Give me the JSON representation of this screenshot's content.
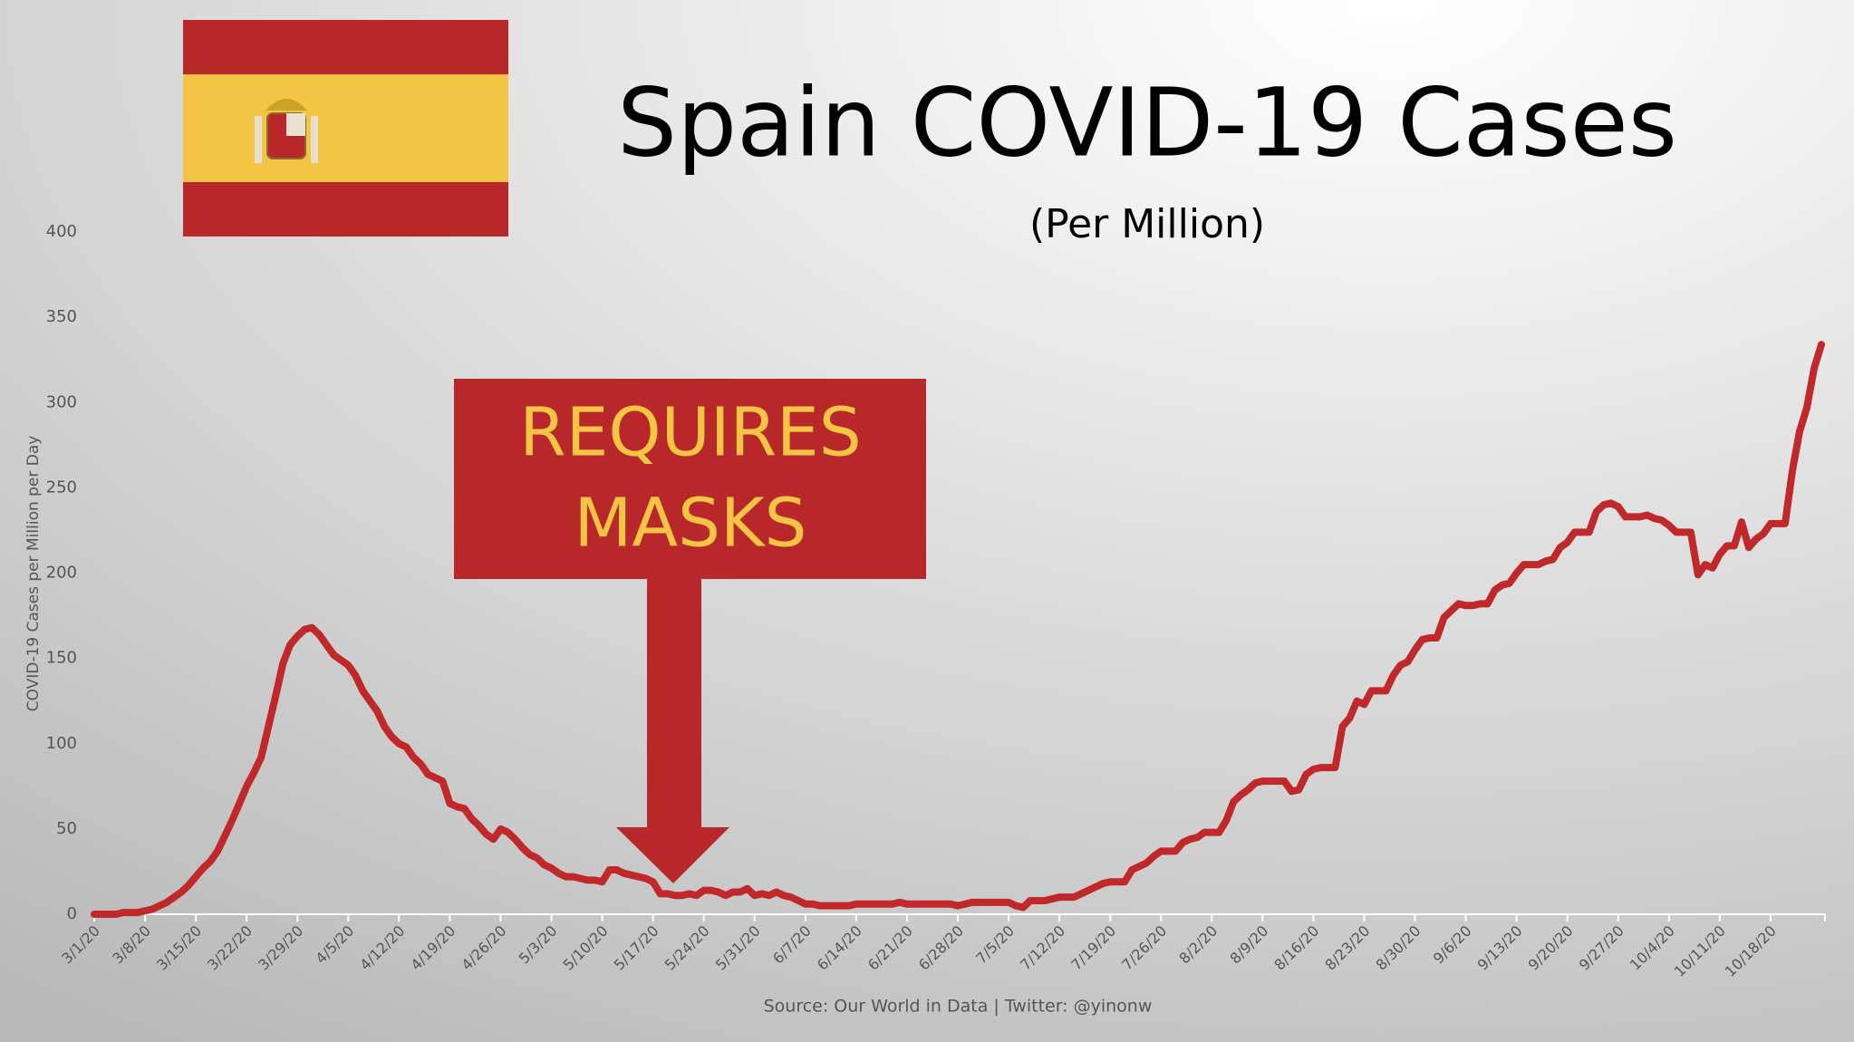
{
  "chart_data": {
    "type": "line",
    "title": "Spain COVID-19 Cases",
    "subtitle": "(Per Million)",
    "y_axis_label": "COVID-19 Cases per Million per Day",
    "source": "Source: Our World in Data | Twitter: @yinonw",
    "annotation": [
      "REQUIRES",
      "MASKS"
    ],
    "ylim": [
      0,
      400
    ],
    "yticks": [
      0,
      50,
      100,
      150,
      200,
      250,
      300,
      350,
      400
    ],
    "categories": [
      "3/1/20",
      null,
      null,
      null,
      null,
      null,
      null,
      "3/8/20",
      null,
      null,
      null,
      null,
      null,
      null,
      "3/15/20",
      null,
      null,
      null,
      null,
      null,
      null,
      "3/22/20",
      null,
      null,
      null,
      null,
      null,
      null,
      "3/29/20",
      null,
      null,
      null,
      null,
      null,
      null,
      "4/5/20",
      null,
      null,
      null,
      null,
      null,
      null,
      "4/12/20",
      null,
      null,
      null,
      null,
      null,
      null,
      "4/19/20",
      null,
      null,
      null,
      null,
      null,
      null,
      "4/26/20",
      null,
      null,
      null,
      null,
      null,
      null,
      "5/3/20",
      null,
      null,
      null,
      null,
      null,
      null,
      "5/10/20",
      null,
      null,
      null,
      null,
      null,
      null,
      "5/17/20",
      null,
      null,
      null,
      null,
      null,
      null,
      "5/24/20",
      null,
      null,
      null,
      null,
      null,
      null,
      "5/31/20",
      null,
      null,
      null,
      null,
      null,
      null,
      "6/7/20",
      null,
      null,
      null,
      null,
      null,
      null,
      "6/14/20",
      null,
      null,
      null,
      null,
      null,
      null,
      "6/21/20",
      null,
      null,
      null,
      null,
      null,
      null,
      "6/28/20",
      null,
      null,
      null,
      null,
      null,
      null,
      "7/5/20",
      null,
      null,
      null,
      null,
      null,
      null,
      "7/12/20",
      null,
      null,
      null,
      null,
      null,
      null,
      "7/19/20",
      null,
      null,
      null,
      null,
      null,
      null,
      "7/26/20",
      null,
      null,
      null,
      null,
      null,
      null,
      "8/2/20",
      null,
      null,
      null,
      null,
      null,
      null,
      "8/9/20",
      null,
      null,
      null,
      null,
      null,
      null,
      "8/16/20",
      null,
      null,
      null,
      null,
      null,
      null,
      "8/23/20",
      null,
      null,
      null,
      null,
      null,
      null,
      "8/30/20",
      null,
      null,
      null,
      null,
      null,
      null,
      "9/6/20",
      null,
      null,
      null,
      null,
      null,
      null,
      "9/13/20",
      null,
      null,
      null,
      null,
      null,
      null,
      "9/20/20",
      null,
      null,
      null,
      null,
      null,
      null,
      "9/27/20",
      null,
      null,
      null,
      null,
      null,
      null,
      "10/4/20",
      null,
      null,
      null,
      null,
      null,
      null,
      "10/11/20",
      null,
      null,
      null,
      null,
      null,
      null,
      "10/18/20",
      null,
      null,
      null,
      null,
      null,
      null,
      null
    ],
    "series": [
      {
        "color": "#c0282a",
        "values": [
          0,
          0,
          0,
          0,
          1,
          1,
          1,
          2,
          3,
          5,
          7,
          10,
          13,
          17,
          22,
          27,
          31,
          37,
          46,
          55,
          65,
          75,
          83,
          92,
          110,
          128,
          147,
          158,
          163,
          167,
          168,
          164,
          158,
          152,
          149,
          146,
          140,
          131,
          125,
          119,
          110,
          104,
          100,
          98,
          92,
          88,
          82,
          80,
          78,
          65,
          63,
          62,
          56,
          52,
          47,
          44,
          50,
          48,
          44,
          39,
          35,
          33,
          29,
          27,
          24,
          22,
          22,
          21,
          20,
          20,
          19,
          26,
          26,
          24,
          23,
          22,
          21,
          19,
          12,
          12,
          11,
          11,
          12,
          11,
          14,
          14,
          13,
          11,
          13,
          13,
          15,
          11,
          12,
          11,
          13,
          11,
          10,
          8,
          6,
          6,
          5,
          5,
          5,
          5,
          5,
          6,
          6,
          6,
          6,
          6,
          6,
          7,
          6,
          6,
          6,
          6,
          6,
          6,
          6,
          5,
          6,
          7,
          7,
          7,
          7,
          7,
          7,
          5,
          4,
          8,
          8,
          8,
          9,
          10,
          10,
          10,
          12,
          14,
          16,
          18,
          19,
          19,
          19,
          26,
          28,
          30,
          34,
          37,
          37,
          37,
          42,
          44,
          45,
          48,
          48,
          48,
          55,
          66,
          70,
          73,
          77,
          78,
          78,
          78,
          78,
          72,
          73,
          82,
          85,
          86,
          86,
          86,
          110,
          115,
          125,
          123,
          131,
          131,
          131,
          140,
          146,
          148,
          155,
          161,
          162,
          162,
          174,
          178,
          182,
          181,
          181,
          182,
          182,
          190,
          193,
          194,
          200,
          205,
          205,
          205,
          207,
          208,
          215,
          218,
          224,
          224,
          224,
          236,
          240,
          241,
          239,
          233,
          233,
          233,
          234,
          232,
          231,
          228,
          224,
          224,
          224,
          199,
          205,
          203,
          211,
          216,
          216,
          230,
          215,
          220,
          223,
          229,
          229,
          229,
          260,
          283,
          297,
          320,
          334
        ]
      }
    ]
  }
}
